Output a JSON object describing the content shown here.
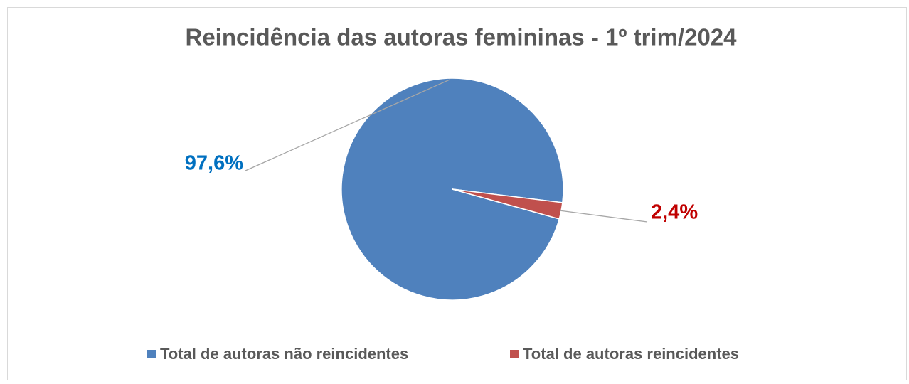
{
  "chart_data": {
    "type": "pie",
    "title": "Reincidência das autoras femininas - 1º trim/2024",
    "categories": [
      "Total de autoras não reincidentes",
      "Total de autoras reincidentes"
    ],
    "values": [
      97.6,
      2.4
    ],
    "value_labels": [
      "97,6%",
      "2,4%"
    ],
    "colors": [
      "#4f81bd",
      "#c0504d"
    ],
    "label_colors": [
      "#0070c0",
      "#c00000"
    ],
    "legend": "bottom"
  }
}
